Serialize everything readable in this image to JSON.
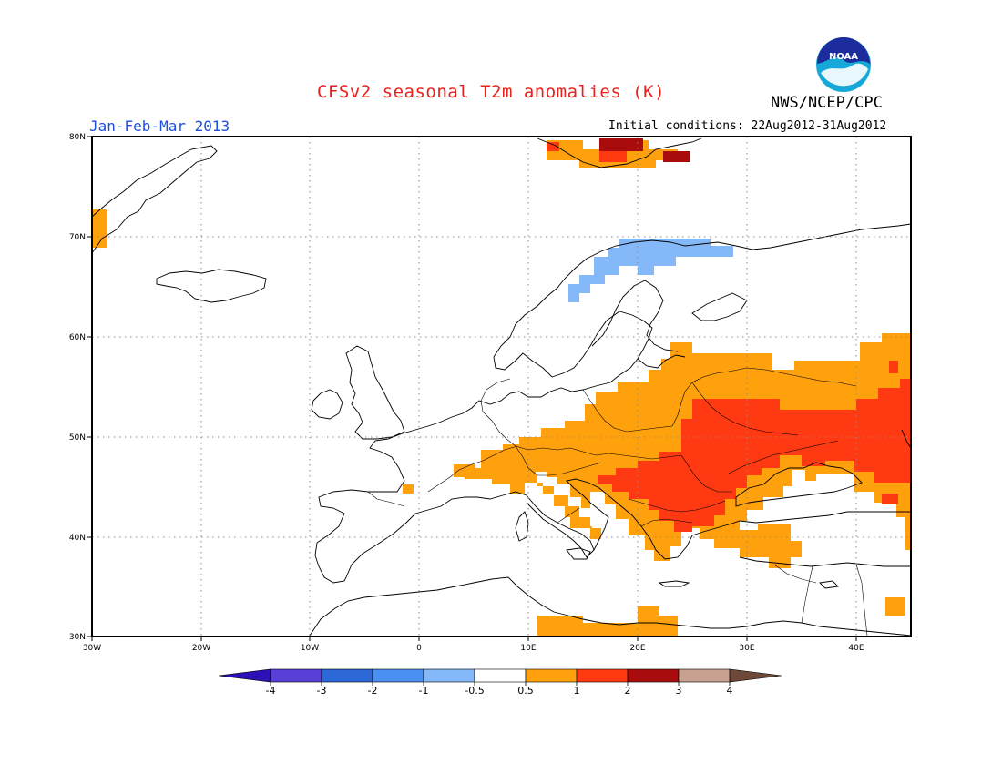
{
  "title": "CFSv2 seasonal T2m anomalies (K)",
  "agency": "NWS/NCEP/CPC",
  "logo_text": "NOAA",
  "period": "Jan-Feb-Mar 2013",
  "initial_conditions": "Initial conditions: 22Aug2012-31Aug2012",
  "map": {
    "lon_range": [
      -30,
      45
    ],
    "lat_range": [
      30,
      80
    ],
    "x_ticks": [
      "30W",
      "20W",
      "10W",
      "0",
      "10E",
      "20E",
      "30E",
      "40E"
    ],
    "y_ticks": [
      "30N",
      "40N",
      "50N",
      "60N",
      "70N",
      "80N"
    ],
    "grid": "dotted",
    "projection": "lat-lon"
  },
  "colorbar": {
    "ticks": [
      "-4",
      "-3",
      "-2",
      "-1",
      "-0.5",
      "0.5",
      "1",
      "2",
      "3",
      "4"
    ],
    "colors": [
      "#2e10b8",
      "#5a3fd6",
      "#2c68d6",
      "#4a90f0",
      "#85b8f8",
      "#ffffff",
      "#ffa10c",
      "#ff3a12",
      "#a80c0c",
      "#c8a090",
      "#6e4838"
    ]
  },
  "anomaly_colors": {
    "cold_0_5_1": "#85b8f8",
    "warm_0_5_1": "#ffa10c",
    "warm_1_2": "#ff3a12",
    "warm_2_3": "#a80c0c"
  }
}
